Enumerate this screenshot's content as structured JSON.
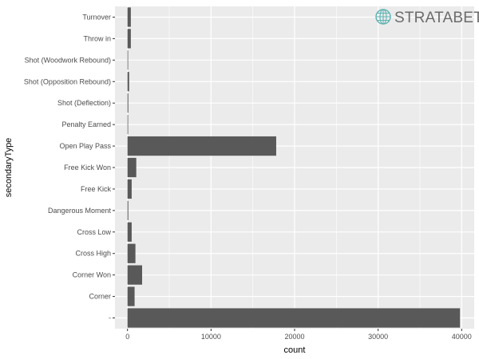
{
  "chart_data": {
    "type": "bar",
    "orientation": "horizontal",
    "categories": [
      "Turnover",
      "Throw in",
      "Shot (Woodwork Rebound)",
      "Shot (Opposition Rebound)",
      "Shot (Deflection)",
      "Penalty Earned",
      "Open Play Pass",
      "Free Kick Won",
      "Free Kick",
      "Dangerous Moment",
      "Cross Low",
      "Cross High",
      "Corner Won",
      "Corner",
      "-"
    ],
    "values": [
      400,
      400,
      40,
      200,
      100,
      50,
      17800,
      1050,
      500,
      100,
      500,
      950,
      1750,
      850,
      39800
    ],
    "xlabel": "count",
    "ylabel": "secondaryType",
    "xlim": [
      -1500,
      41500
    ],
    "xticks": [
      0,
      10000,
      20000,
      30000,
      40000
    ],
    "xtick_labels": [
      "0",
      "10000",
      "20000",
      "30000",
      "40000"
    ],
    "grid": true,
    "bar_color": "#595959",
    "panel_color": "#ebebeb",
    "grid_color": "#ffffff"
  },
  "brand": {
    "name": "STRATABET",
    "color": "#6b6b6b",
    "globe_color": "#5fb3b3"
  }
}
